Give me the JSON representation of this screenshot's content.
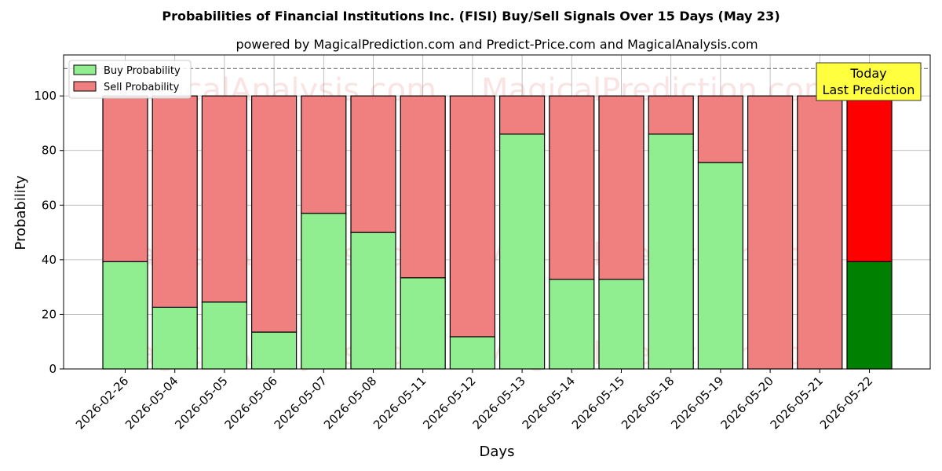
{
  "chart_data": {
    "type": "bar",
    "stacked": true,
    "title": "Probabilities of Financial Institutions Inc. (FISI) Buy/Sell Signals Over 15 Days (May 23)",
    "subtitle": "powered by MagicalPrediction.com and Predict-Price.com and MagicalAnalysis.com",
    "xlabel": "Days",
    "ylabel": "Probability",
    "ylim": [
      0,
      115
    ],
    "yticks": [
      0,
      20,
      40,
      60,
      80,
      100
    ],
    "reference_line": 110,
    "grid": true,
    "legend_position": "top-left",
    "categories": [
      "2026-02-26",
      "2026-05-04",
      "2026-05-05",
      "2026-05-06",
      "2026-05-07",
      "2026-05-08",
      "2026-05-11",
      "2026-05-12",
      "2026-05-13",
      "2026-05-14",
      "2026-05-15",
      "2026-05-18",
      "2026-05-19",
      "2026-05-20",
      "2026-05-21",
      "2026-05-22"
    ],
    "series": [
      {
        "name": "Buy Probability",
        "color": "#90ee90",
        "highlight_color": "#008000",
        "values": [
          39.3,
          22.6,
          24.5,
          13.5,
          57.0,
          50.0,
          33.4,
          11.8,
          86.0,
          32.8,
          32.8,
          86.0,
          75.6,
          0,
          0,
          39.3
        ]
      },
      {
        "name": "Sell Probability",
        "color": "#f08080",
        "highlight_color": "#ff0000",
        "values": [
          60.7,
          77.4,
          75.5,
          86.5,
          43.0,
          50.0,
          66.6,
          88.2,
          14.0,
          67.2,
          67.2,
          14.0,
          24.4,
          100,
          100,
          60.7
        ]
      }
    ],
    "highlight_index": 15,
    "annotation": {
      "lines": [
        "Today",
        "Last Prediction"
      ],
      "bg_color": "#ffff40"
    },
    "watermarks": [
      "MagicalAnalysis.com",
      "MagicalPrediction.com"
    ]
  }
}
